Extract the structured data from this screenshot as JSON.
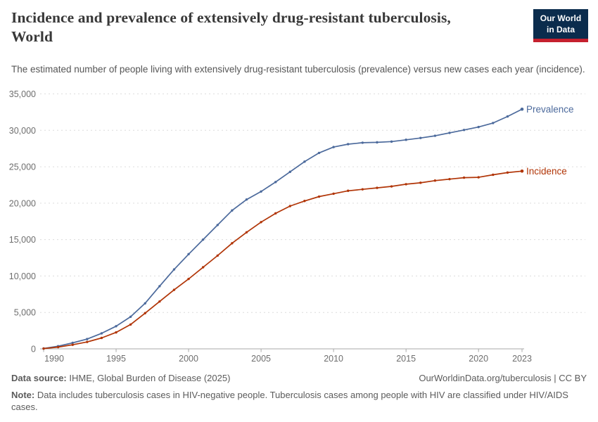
{
  "header": {
    "title_line1": "Incidence and prevalence of extensively drug-resistant tuberculosis,",
    "title_line2": "World",
    "subtitle": "The estimated number of people living with extensively drug-resistant tuberculosis (prevalence) versus new cases each year (incidence)."
  },
  "logo": {
    "line1": "Our World",
    "line2": "in Data",
    "bg_color": "#0b2c4d",
    "accent_color": "#c5202e"
  },
  "chart_data": {
    "type": "line",
    "title": "Incidence and prevalence of extensively drug-resistant tuberculosis, World",
    "xlabel": "",
    "ylabel": "",
    "x": [
      1990,
      1991,
      1992,
      1993,
      1994,
      1995,
      1996,
      1997,
      1998,
      1999,
      2000,
      2001,
      2002,
      2003,
      2004,
      2005,
      2006,
      2007,
      2008,
      2009,
      2010,
      2011,
      2012,
      2013,
      2014,
      2015,
      2016,
      2017,
      2018,
      2019,
      2020,
      2021,
      2022,
      2023
    ],
    "series": [
      {
        "name": "Prevalence",
        "color": "#4C6A9C",
        "values": [
          50,
          370,
          820,
          1340,
          2130,
          3110,
          4400,
          6250,
          8600,
          10900,
          13000,
          15000,
          17000,
          19000,
          20500,
          21600,
          22900,
          24300,
          25700,
          26900,
          27700,
          28100,
          28300,
          28350,
          28450,
          28700,
          28950,
          29250,
          29650,
          30050,
          30450,
          31000,
          31900,
          32900
        ]
      },
      {
        "name": "Incidence",
        "color": "#B13507",
        "values": [
          40,
          240,
          560,
          950,
          1500,
          2260,
          3340,
          4900,
          6500,
          8100,
          9600,
          11200,
          12800,
          14500,
          16000,
          17400,
          18600,
          19600,
          20300,
          20900,
          21300,
          21700,
          21900,
          22100,
          22300,
          22600,
          22800,
          23100,
          23300,
          23500,
          23550,
          23900,
          24200,
          24400
        ]
      }
    ],
    "ylim": [
      0,
      35000
    ],
    "y_ticks": [
      {
        "v": 0,
        "label": "0"
      },
      {
        "v": 5000,
        "label": "5,000"
      },
      {
        "v": 10000,
        "label": "10,000"
      },
      {
        "v": 15000,
        "label": "15,000"
      },
      {
        "v": 20000,
        "label": "20,000"
      },
      {
        "v": 25000,
        "label": "25,000"
      },
      {
        "v": 30000,
        "label": "30,000"
      },
      {
        "v": 35000,
        "label": "35,000"
      }
    ],
    "x_ticks": [
      {
        "v": 1990,
        "label": "1990"
      },
      {
        "v": 1995,
        "label": "1995"
      },
      {
        "v": 2000,
        "label": "2000"
      },
      {
        "v": 2005,
        "label": "2005"
      },
      {
        "v": 2010,
        "label": "2010"
      },
      {
        "v": 2015,
        "label": "2015"
      },
      {
        "v": 2020,
        "label": "2020"
      },
      {
        "v": 2023,
        "label": "2023"
      }
    ],
    "grid": "horizontal-dashed",
    "legend_position": "end-of-line-labels",
    "colors": {
      "gridline": "#dcdcdc",
      "axis": "#a8a8a8",
      "tick_label": "#6e6e6e"
    }
  },
  "footer": {
    "source_label": "Data source:",
    "source_text": " IHME, Global Burden of Disease (2025)",
    "attribution": "OurWorldinData.org/tuberculosis | CC BY",
    "note_label": "Note:",
    "note_text": " Data includes tuberculosis cases in HIV-negative people. Tuberculosis cases among people with HIV are classified under HIV/AIDS cases."
  }
}
